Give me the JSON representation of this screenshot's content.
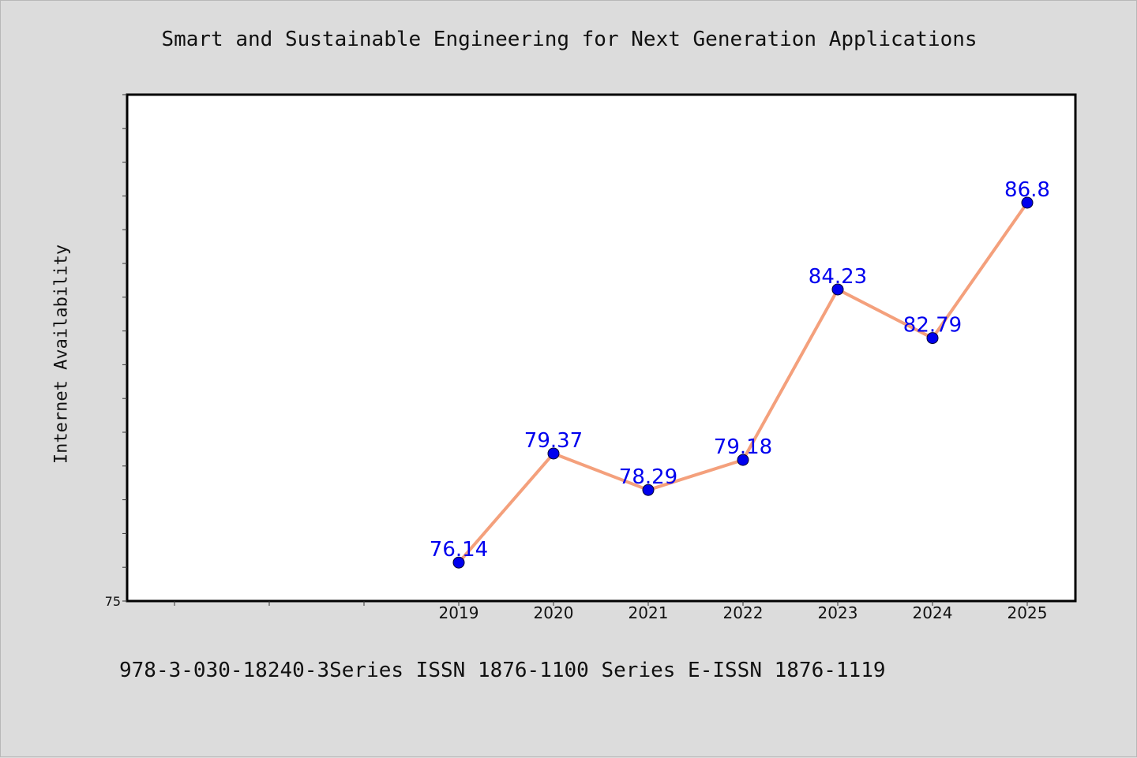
{
  "chart_data": {
    "type": "line",
    "title": "Smart and Sustainable Engineering for Next Generation Applications",
    "ylabel": "Internet Availability",
    "xlabel": "",
    "footer": "978-3-030-18240-3Series ISSN 1876-1100 Series E-ISSN 1876-1119",
    "x": [
      "2019",
      "2020",
      "2021",
      "2022",
      "2023",
      "2024",
      "2025"
    ],
    "series": [
      {
        "values": [
          76.14,
          79.37,
          78.29,
          79.18,
          84.23,
          82.79,
          86.8
        ]
      }
    ],
    "value_labels": [
      "76.14",
      "79.37",
      "78.29",
      "79.18",
      "84.23",
      "82.79",
      "86.8"
    ],
    "ylim": [
      75,
      90
    ],
    "yticks_labeled": [
      "75"
    ],
    "line_color": "#f4a07c",
    "marker_color": "#0000ee",
    "label_color": "#0000ee",
    "grid": false,
    "legend": "none"
  }
}
